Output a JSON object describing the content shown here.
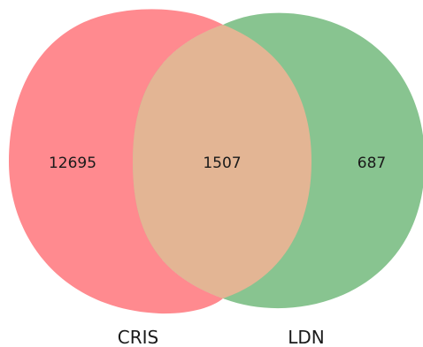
{
  "diagram": {
    "type": "venn",
    "sets": [
      {
        "id": "left",
        "label": "CRIS",
        "color": "#ff8a8f"
      },
      {
        "id": "right",
        "label": "LDN",
        "color": "#88c490"
      }
    ],
    "overlap_color": "#e3b594",
    "counts": {
      "left_only": "12695",
      "both": "1507",
      "right_only": "687"
    }
  }
}
